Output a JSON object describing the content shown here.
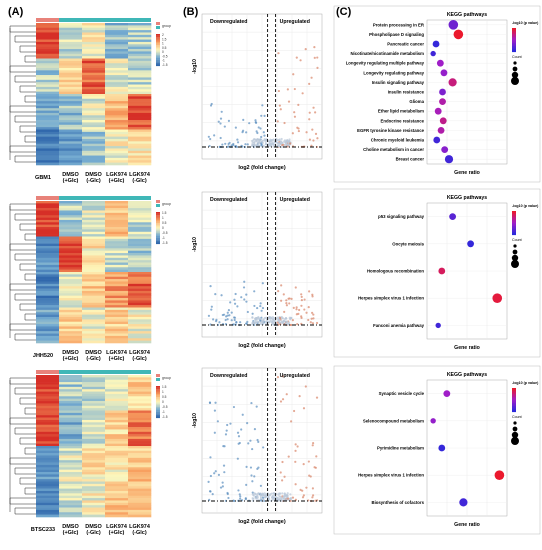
{
  "panels": {
    "a": "(A)",
    "b": "(B)",
    "c": "(C)"
  },
  "heatmaps": [
    {
      "columns": [
        "GBM1",
        "DMSO\n(+Glc)",
        "DMSO\n(-Glc)",
        "LGK974\n(+Glc)",
        "LGK974\n(-Glc)"
      ],
      "legend_ticks": [
        "2",
        "1.5",
        "1",
        "0.5",
        "0",
        "-0.5",
        "-1",
        "-1.5"
      ]
    },
    {
      "columns": [
        "JHH520",
        "DMSO\n(+Glc)",
        "DMSO\n(-Glc)",
        "LGK974\n(+Glc)",
        "LGK974\n(-Glc)"
      ],
      "legend_ticks": [
        "1.5",
        "1",
        "0.5",
        "0",
        "-0.5",
        "-1",
        "-1.5"
      ]
    },
    {
      "columns": [
        "BTSC233",
        "DMSO\n(+Glc)",
        "DMSO\n(-Glc)",
        "LGK974\n(+Glc)",
        "LGK974\n(-Glc)"
      ],
      "legend_ticks": [
        "1.5",
        "1",
        "0.5",
        "0",
        "-0.5",
        "-1",
        "-1.5"
      ]
    }
  ],
  "heatmap_legend_title": "group",
  "volcano": {
    "down_label": "Downregulated",
    "up_label": "Upregulated",
    "xlabel": "log2 (fold change)",
    "ylabel": "-log10",
    "down_color": "#5b8fbf",
    "up_color": "#d98468",
    "ns_color": "#b9c8d8"
  },
  "kegg": {
    "title": "KEGG pathways",
    "xlabel": "Gene ratio",
    "legend_title": "-log10 (p value)",
    "count_label": "Count",
    "sets": [
      {
        "terms": [
          {
            "name": "Protein processing in ER",
            "ratio": 0.31,
            "sig": 0.3,
            "size": 5
          },
          {
            "name": "Phospholipase D signaling",
            "ratio": 0.38,
            "sig": 1.0,
            "size": 5
          },
          {
            "name": "Pancreatic cancer",
            "ratio": 0.07,
            "sig": 0.05,
            "size": 3
          },
          {
            "name": "Nicotinate/nicotinamide metabolism",
            "ratio": 0.03,
            "sig": 0.1,
            "size": 2
          },
          {
            "name": "Longevity regulating multiple pathway",
            "ratio": 0.13,
            "sig": 0.5,
            "size": 3
          },
          {
            "name": "Longevity regulating pathway",
            "ratio": 0.18,
            "sig": 0.45,
            "size": 3
          },
          {
            "name": "Insulin signaling pathway",
            "ratio": 0.3,
            "sig": 0.75,
            "size": 4
          },
          {
            "name": "Insulin resistance",
            "ratio": 0.16,
            "sig": 0.35,
            "size": 3
          },
          {
            "name": "Glioma",
            "ratio": 0.16,
            "sig": 0.6,
            "size": 3
          },
          {
            "name": "Ether lipid metabolism",
            "ratio": 0.1,
            "sig": 0.55,
            "size": 3
          },
          {
            "name": "Endocrine resistance",
            "ratio": 0.17,
            "sig": 0.7,
            "size": 3
          },
          {
            "name": "EGFR tyrosine kinase resistance",
            "ratio": 0.14,
            "sig": 0.6,
            "size": 3
          },
          {
            "name": "Chronic myeloid leukemia",
            "ratio": 0.08,
            "sig": 0.1,
            "size": 3
          },
          {
            "name": "Choline metabolism in cancer",
            "ratio": 0.19,
            "sig": 0.4,
            "size": 3
          },
          {
            "name": "Breast cancer",
            "ratio": 0.25,
            "sig": 0.1,
            "size": 4
          }
        ]
      },
      {
        "terms": [
          {
            "name": "p53 signaling pathway",
            "ratio": 0.3,
            "sig": 0.2,
            "size": 3
          },
          {
            "name": "Oocyte meiosis",
            "ratio": 0.55,
            "sig": 0.05,
            "size": 3
          },
          {
            "name": "Homologous recombination",
            "ratio": 0.15,
            "sig": 0.85,
            "size": 3
          },
          {
            "name": "Herpes simplex virus 1 infection",
            "ratio": 0.92,
            "sig": 0.95,
            "size": 5
          },
          {
            "name": "Fanconi anemia pathway",
            "ratio": 0.1,
            "sig": 0.1,
            "size": 2
          }
        ]
      },
      {
        "terms": [
          {
            "name": "Synaptic vesicle cycle",
            "ratio": 0.22,
            "sig": 0.5,
            "size": 3
          },
          {
            "name": "Selenocompound metabolism",
            "ratio": 0.03,
            "sig": 0.45,
            "size": 2
          },
          {
            "name": "Pyrimidine  metabolism",
            "ratio": 0.15,
            "sig": 0.05,
            "size": 3
          },
          {
            "name": "Herpes simplex virus 1 infection",
            "ratio": 0.95,
            "sig": 1.0,
            "size": 5
          },
          {
            "name": "Biosynthesis of cofactors",
            "ratio": 0.45,
            "sig": 0.1,
            "size": 4
          }
        ]
      }
    ]
  }
}
